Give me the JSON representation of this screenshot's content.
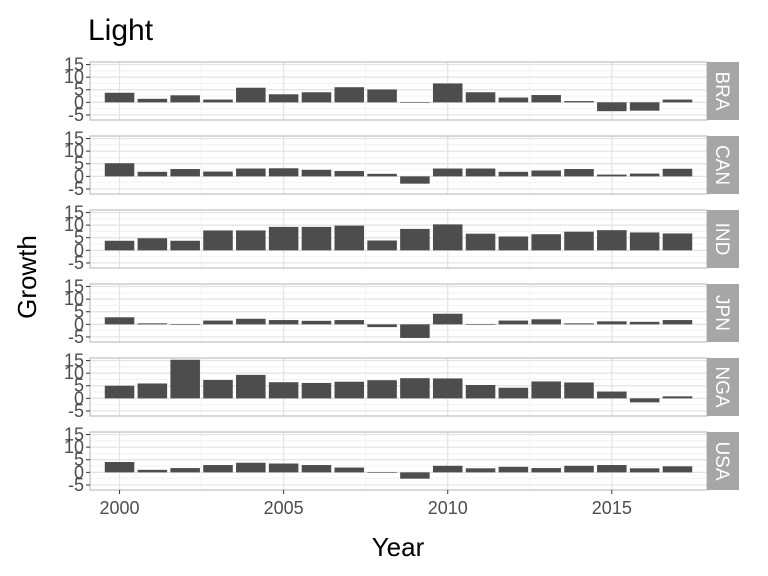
{
  "chart_data": {
    "type": "bar",
    "title": "Light",
    "xlabel": "Year",
    "ylabel": "Growth",
    "x": [
      2000,
      2001,
      2002,
      2003,
      2004,
      2005,
      2006,
      2007,
      2008,
      2009,
      2010,
      2011,
      2012,
      2013,
      2014,
      2015,
      2016,
      2017
    ],
    "x_ticks": [
      2000,
      2005,
      2010,
      2015
    ],
    "y_ticks": [
      -5,
      0,
      5,
      10,
      15
    ],
    "ylim": [
      -7,
      16
    ],
    "grid": true,
    "bar_color": "#4d4d4d",
    "strip_color": "#a6a6a6",
    "panels": [
      {
        "name": "BRA",
        "values": [
          3.8,
          1.4,
          2.8,
          1.1,
          5.8,
          3.2,
          4.0,
          6.0,
          5.1,
          -0.2,
          7.5,
          4.0,
          1.9,
          2.9,
          0.5,
          -3.5,
          -3.3,
          1.1
        ]
      },
      {
        "name": "CAN",
        "values": [
          5.2,
          1.8,
          2.9,
          1.9,
          3.1,
          3.2,
          2.6,
          2.1,
          1.0,
          -2.9,
          3.1,
          3.1,
          1.8,
          2.3,
          2.9,
          0.7,
          1.1,
          3.0
        ]
      },
      {
        "name": "IND",
        "values": [
          3.8,
          4.8,
          3.8,
          7.9,
          7.9,
          9.3,
          9.3,
          9.8,
          3.9,
          8.5,
          10.3,
          6.6,
          5.5,
          6.4,
          7.4,
          8.0,
          7.1,
          6.7
        ]
      },
      {
        "name": "JPN",
        "values": [
          2.8,
          0.4,
          0.1,
          1.5,
          2.2,
          1.7,
          1.4,
          1.7,
          -1.1,
          -5.4,
          4.2,
          -0.1,
          1.5,
          2.0,
          0.4,
          1.2,
          1.0,
          1.7
        ]
      },
      {
        "name": "NGA",
        "values": [
          5.0,
          5.9,
          15.3,
          7.3,
          9.3,
          6.4,
          6.1,
          6.6,
          7.2,
          8.0,
          7.9,
          5.3,
          4.2,
          6.7,
          6.3,
          2.7,
          -1.6,
          0.8
        ]
      },
      {
        "name": "USA",
        "values": [
          4.1,
          1.0,
          1.7,
          2.9,
          3.8,
          3.5,
          2.9,
          1.9,
          -0.1,
          -2.5,
          2.6,
          1.6,
          2.2,
          1.7,
          2.6,
          2.9,
          1.6,
          2.4
        ]
      }
    ]
  }
}
